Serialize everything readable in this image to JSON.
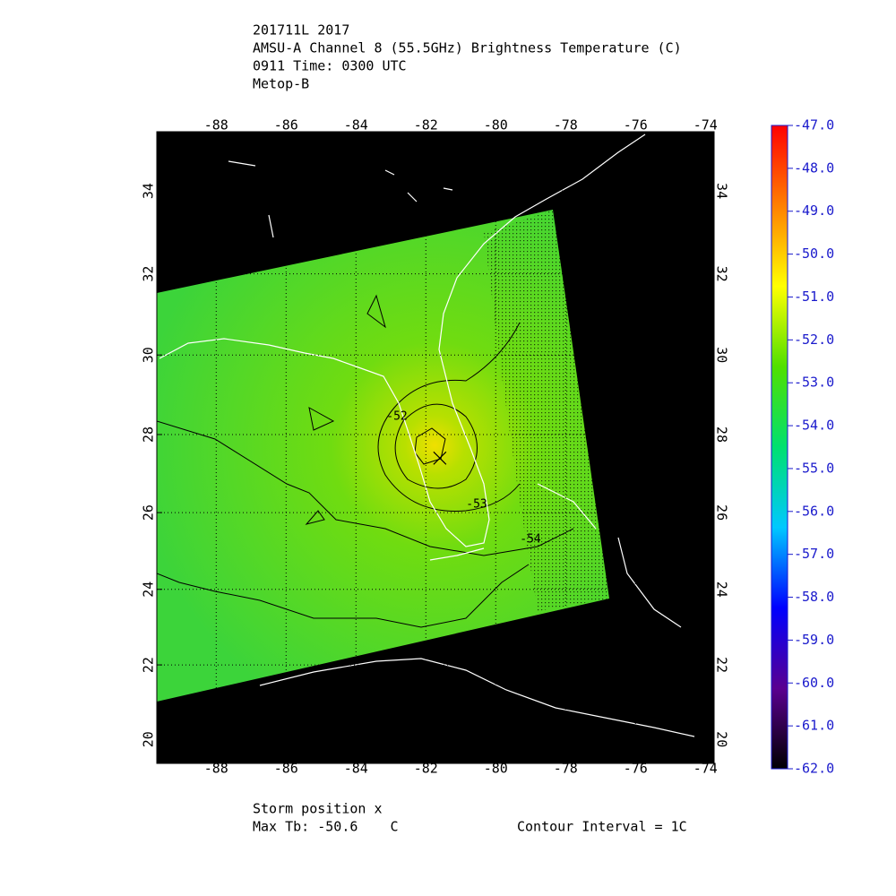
{
  "header": {
    "lines": [
      "201711L 2017",
      "AMSU-A Channel 8 (55.5GHz) Brightness Temperature (C)",
      "0911 Time: 0300 UTC",
      "Metop-B"
    ]
  },
  "map": {
    "lonlim": [
      -89.7,
      -73.75
    ],
    "latlim": [
      19.35,
      35.4
    ],
    "lonticks": [
      -88,
      -86,
      -84,
      -82,
      -80,
      -78,
      -76,
      -74
    ],
    "latticks": [
      20,
      22,
      24,
      26,
      28,
      30,
      32,
      34
    ],
    "storm": {
      "lon": -81.6,
      "lat": 27.4
    },
    "contour_labels": [
      -52,
      -53,
      -54
    ]
  },
  "colorbar": {
    "lim": [
      -62,
      -47
    ],
    "colors": [
      "#000000",
      "#5a0090",
      "#0000ff",
      "#00c8ff",
      "#00e070",
      "#50e000",
      "#ffff00",
      "#ff8000",
      "#ff0000"
    ],
    "ticks": [
      {
        "value": -47,
        "label": "-47.0"
      },
      {
        "value": -48,
        "label": "-48.0"
      },
      {
        "value": -49,
        "label": "-49.0"
      },
      {
        "value": -50,
        "label": "-50.0"
      },
      {
        "value": -51,
        "label": "-51.0"
      },
      {
        "value": -52,
        "label": "-52.0"
      },
      {
        "value": -53,
        "label": "-53.0"
      },
      {
        "value": -54,
        "label": "-54.0"
      },
      {
        "value": -55,
        "label": "-55.0"
      },
      {
        "value": -56,
        "label": "-56.0"
      },
      {
        "value": -57,
        "label": "-57.0"
      },
      {
        "value": -58,
        "label": "-58.0"
      },
      {
        "value": -59,
        "label": "-59.0"
      },
      {
        "value": -60,
        "label": "-60.0"
      },
      {
        "value": -61,
        "label": "-61.0"
      },
      {
        "value": -62,
        "label": "-62.0"
      }
    ]
  },
  "footer": {
    "storm_label": "Storm position x",
    "max_tb": "Max Tb: -50.6    C",
    "contour_interval": "Contour Interval = 1C"
  }
}
